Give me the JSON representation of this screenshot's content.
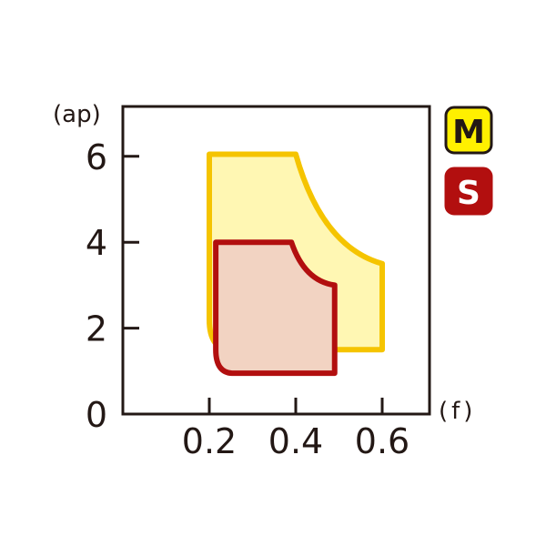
{
  "chart_data": {
    "type": "area",
    "title": "",
    "xlabel": "(f)",
    "ylabel": "(ap)",
    "xlim": [
      0,
      0.71
    ],
    "ylim": [
      0,
      7.15
    ],
    "grid": false,
    "x_ticks": [
      0.2,
      0.4,
      0.6
    ],
    "x_tick_labels": [
      "0.2",
      "0.4",
      "0.6"
    ],
    "y_ticks": [
      0,
      2,
      4,
      6
    ],
    "y_tick_labels": [
      "0",
      "2",
      "4",
      "6"
    ],
    "legend_placement": "right",
    "series": [
      {
        "name": "M",
        "fill": "#fff7b3",
        "stroke": "#f5c400",
        "outline": [
          {
            "cmd": "M",
            "pt": [
              0.2,
              6.05
            ]
          },
          {
            "cmd": "L",
            "pt": [
              0.4,
              6.05
            ]
          },
          {
            "cmd": "Q",
            "ctrl": [
              0.46,
              3.9
            ],
            "pt": [
              0.6,
              3.5
            ]
          },
          {
            "cmd": "L",
            "pt": [
              0.6,
              1.5
            ]
          },
          {
            "cmd": "L",
            "pt": [
              0.25,
              1.5
            ]
          },
          {
            "cmd": "Q",
            "ctrl": [
              0.2,
              1.5
            ],
            "pt": [
              0.2,
              2.2
            ]
          }
        ]
      },
      {
        "name": "S",
        "fill": "#f2d3c2",
        "stroke": "#b20f0f",
        "outline": [
          {
            "cmd": "M",
            "pt": [
              0.215,
              4.0
            ]
          },
          {
            "cmd": "L",
            "pt": [
              0.39,
              4.0
            ]
          },
          {
            "cmd": "Q",
            "ctrl": [
              0.42,
              3.1
            ],
            "pt": [
              0.49,
              3.0
            ]
          },
          {
            "cmd": "L",
            "pt": [
              0.49,
              0.95
            ]
          },
          {
            "cmd": "L",
            "pt": [
              0.255,
              0.95
            ]
          },
          {
            "cmd": "Q",
            "ctrl": [
              0.215,
              0.95
            ],
            "pt": [
              0.215,
              1.5
            ]
          }
        ]
      }
    ],
    "legend": [
      {
        "label": "M",
        "bg": "#fff000",
        "fg": "#231815",
        "border": "#231815"
      },
      {
        "label": "S",
        "bg": "#b20f0f",
        "fg": "#ffffff",
        "border": "#b20f0f"
      }
    ]
  }
}
